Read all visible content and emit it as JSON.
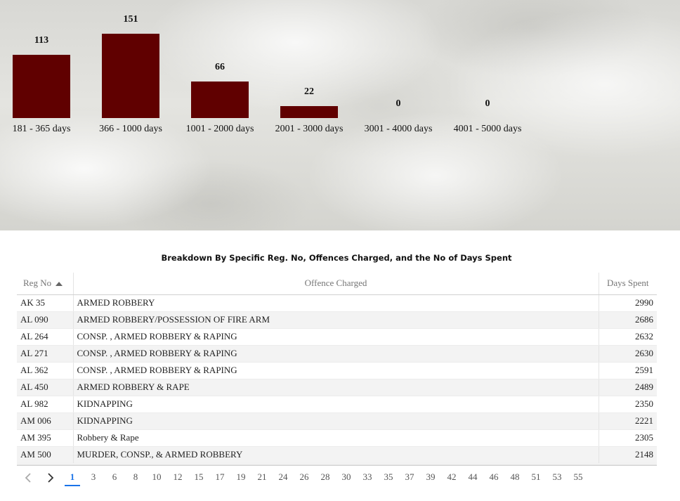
{
  "chart_data": {
    "type": "bar",
    "categories": [
      "181 - 365 days",
      "366 - 1000 days",
      "1001 - 2000 days",
      "2001 - 3000 days",
      "3001 - 4000 days",
      "4001 - 5000 days"
    ],
    "values": [
      113,
      151,
      66,
      22,
      0,
      0
    ],
    "value_labels": [
      "113",
      "151",
      "66",
      "22",
      "0",
      "0"
    ],
    "bar_color": "#600000",
    "ylim": [
      0,
      151
    ],
    "grid": false,
    "legend": "none"
  },
  "table": {
    "title": "Breakdown By Specific Reg. No, Offences Charged, and the No of Days Spent",
    "columns": [
      "Reg No",
      "Offence Charged",
      "Days Spent"
    ],
    "sort": {
      "column": "Reg No",
      "direction": "ascending"
    },
    "rows": [
      {
        "reg": "AK 35",
        "offence": "ARMED ROBBERY",
        "days": "2990"
      },
      {
        "reg": "AL 090",
        "offence": "ARMED ROBBERY/POSSESSION OF FIRE ARM",
        "days": "2686"
      },
      {
        "reg": "AL 264",
        "offence": "CONSP. , ARMED ROBBERY & RAPING",
        "days": "2632"
      },
      {
        "reg": "AL 271",
        "offence": "CONSP. , ARMED ROBBERY & RAPING",
        "days": "2630"
      },
      {
        "reg": "AL 362",
        "offence": "CONSP. , ARMED ROBBERY & RAPING",
        "days": "2591"
      },
      {
        "reg": "AL 450",
        "offence": "ARMED ROBBERY & RAPE",
        "days": "2489"
      },
      {
        "reg": "AL 982",
        "offence": "KIDNAPPING",
        "days": "2350"
      },
      {
        "reg": "AM 006",
        "offence": "KIDNAPPING",
        "days": "2221"
      },
      {
        "reg": "AM 395",
        "offence": "Robbery & Rape",
        "days": "2305"
      },
      {
        "reg": "AM 500",
        "offence": "MURDER, CONSP., & ARMED ROBBERY",
        "days": "2148"
      }
    ]
  },
  "pager": {
    "prev_icon": "chevron-left-icon",
    "next_icon": "chevron-right-icon",
    "current": "1",
    "pages": [
      "1",
      "3",
      "6",
      "8",
      "10",
      "12",
      "15",
      "17",
      "19",
      "21",
      "24",
      "26",
      "28",
      "30",
      "33",
      "35",
      "37",
      "39",
      "42",
      "44",
      "46",
      "48",
      "51",
      "53",
      "55"
    ]
  }
}
